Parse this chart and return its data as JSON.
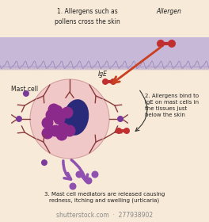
{
  "bg_color": "#f8ead8",
  "skin_color": "#c8b8d8",
  "skin_highlight": "#e8d8f0",
  "skin_wave_color": "#b8a8cc",
  "cell_body_color": "#f0c8c8",
  "cell_body_edge": "#d4a0a0",
  "cell_nucleus_color": "#2a2a7a",
  "cell_granule_color": "#8b2a8b",
  "receptor_stem_color": "#8b3a3a",
  "receptor_end_color": "#7a3a7a",
  "allergen_color": "#c03030",
  "allergen_bar_color": "#c03030",
  "red_arrow_color": "#c84020",
  "black_arrow_color": "#333333",
  "purple_arrow_color": "#9050b0",
  "mediator_color": "#9050b0",
  "title1": "1. Allergens such as\npollens cross the skin",
  "label_allergen": "Allergen",
  "title2": "2. Allergens bind to\nIgE on mast cells in\nthe tissues just\nbelow the skin",
  "title3": "3. Mast cell mediators are released causing\nredness, itching and swelling (urticaria)",
  "label_mastcell": "Mast cell",
  "label_ige": "IgE",
  "watermark": "shutterstock.com  ·  277938902",
  "figsize": [
    2.64,
    2.8
  ],
  "dpi": 100
}
